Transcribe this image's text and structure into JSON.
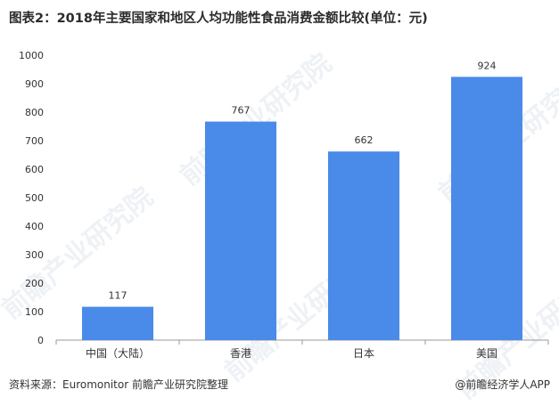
{
  "title": "图表2：2018年主要国家和地区人均功能性食品消费金额比较(单位：元)",
  "source": "资料来源：Euromonitor 前瞻产业研究院整理",
  "brand": "@前瞻经济学人APP",
  "watermark": "前瞻产业研究院",
  "colors": {
    "bar": "#4a8ae8",
    "axis": "#999999",
    "text": "#333333"
  },
  "chart_data": {
    "type": "bar",
    "categories": [
      "中国（大陆）",
      "香港",
      "日本",
      "美国"
    ],
    "values": [
      117,
      767,
      662,
      924
    ],
    "data_labels": [
      "117",
      "767",
      "662",
      "924"
    ],
    "yticks": [
      "0",
      "100",
      "200",
      "300",
      "400",
      "500",
      "600",
      "700",
      "800",
      "900",
      "1000"
    ],
    "ylim": [
      0,
      1000
    ],
    "grid": false,
    "legend": "none",
    "title": "图表2：2018年主要国家和地区人均功能性食品消费金额比较(单位：元)",
    "xlabel": "",
    "ylabel": ""
  }
}
